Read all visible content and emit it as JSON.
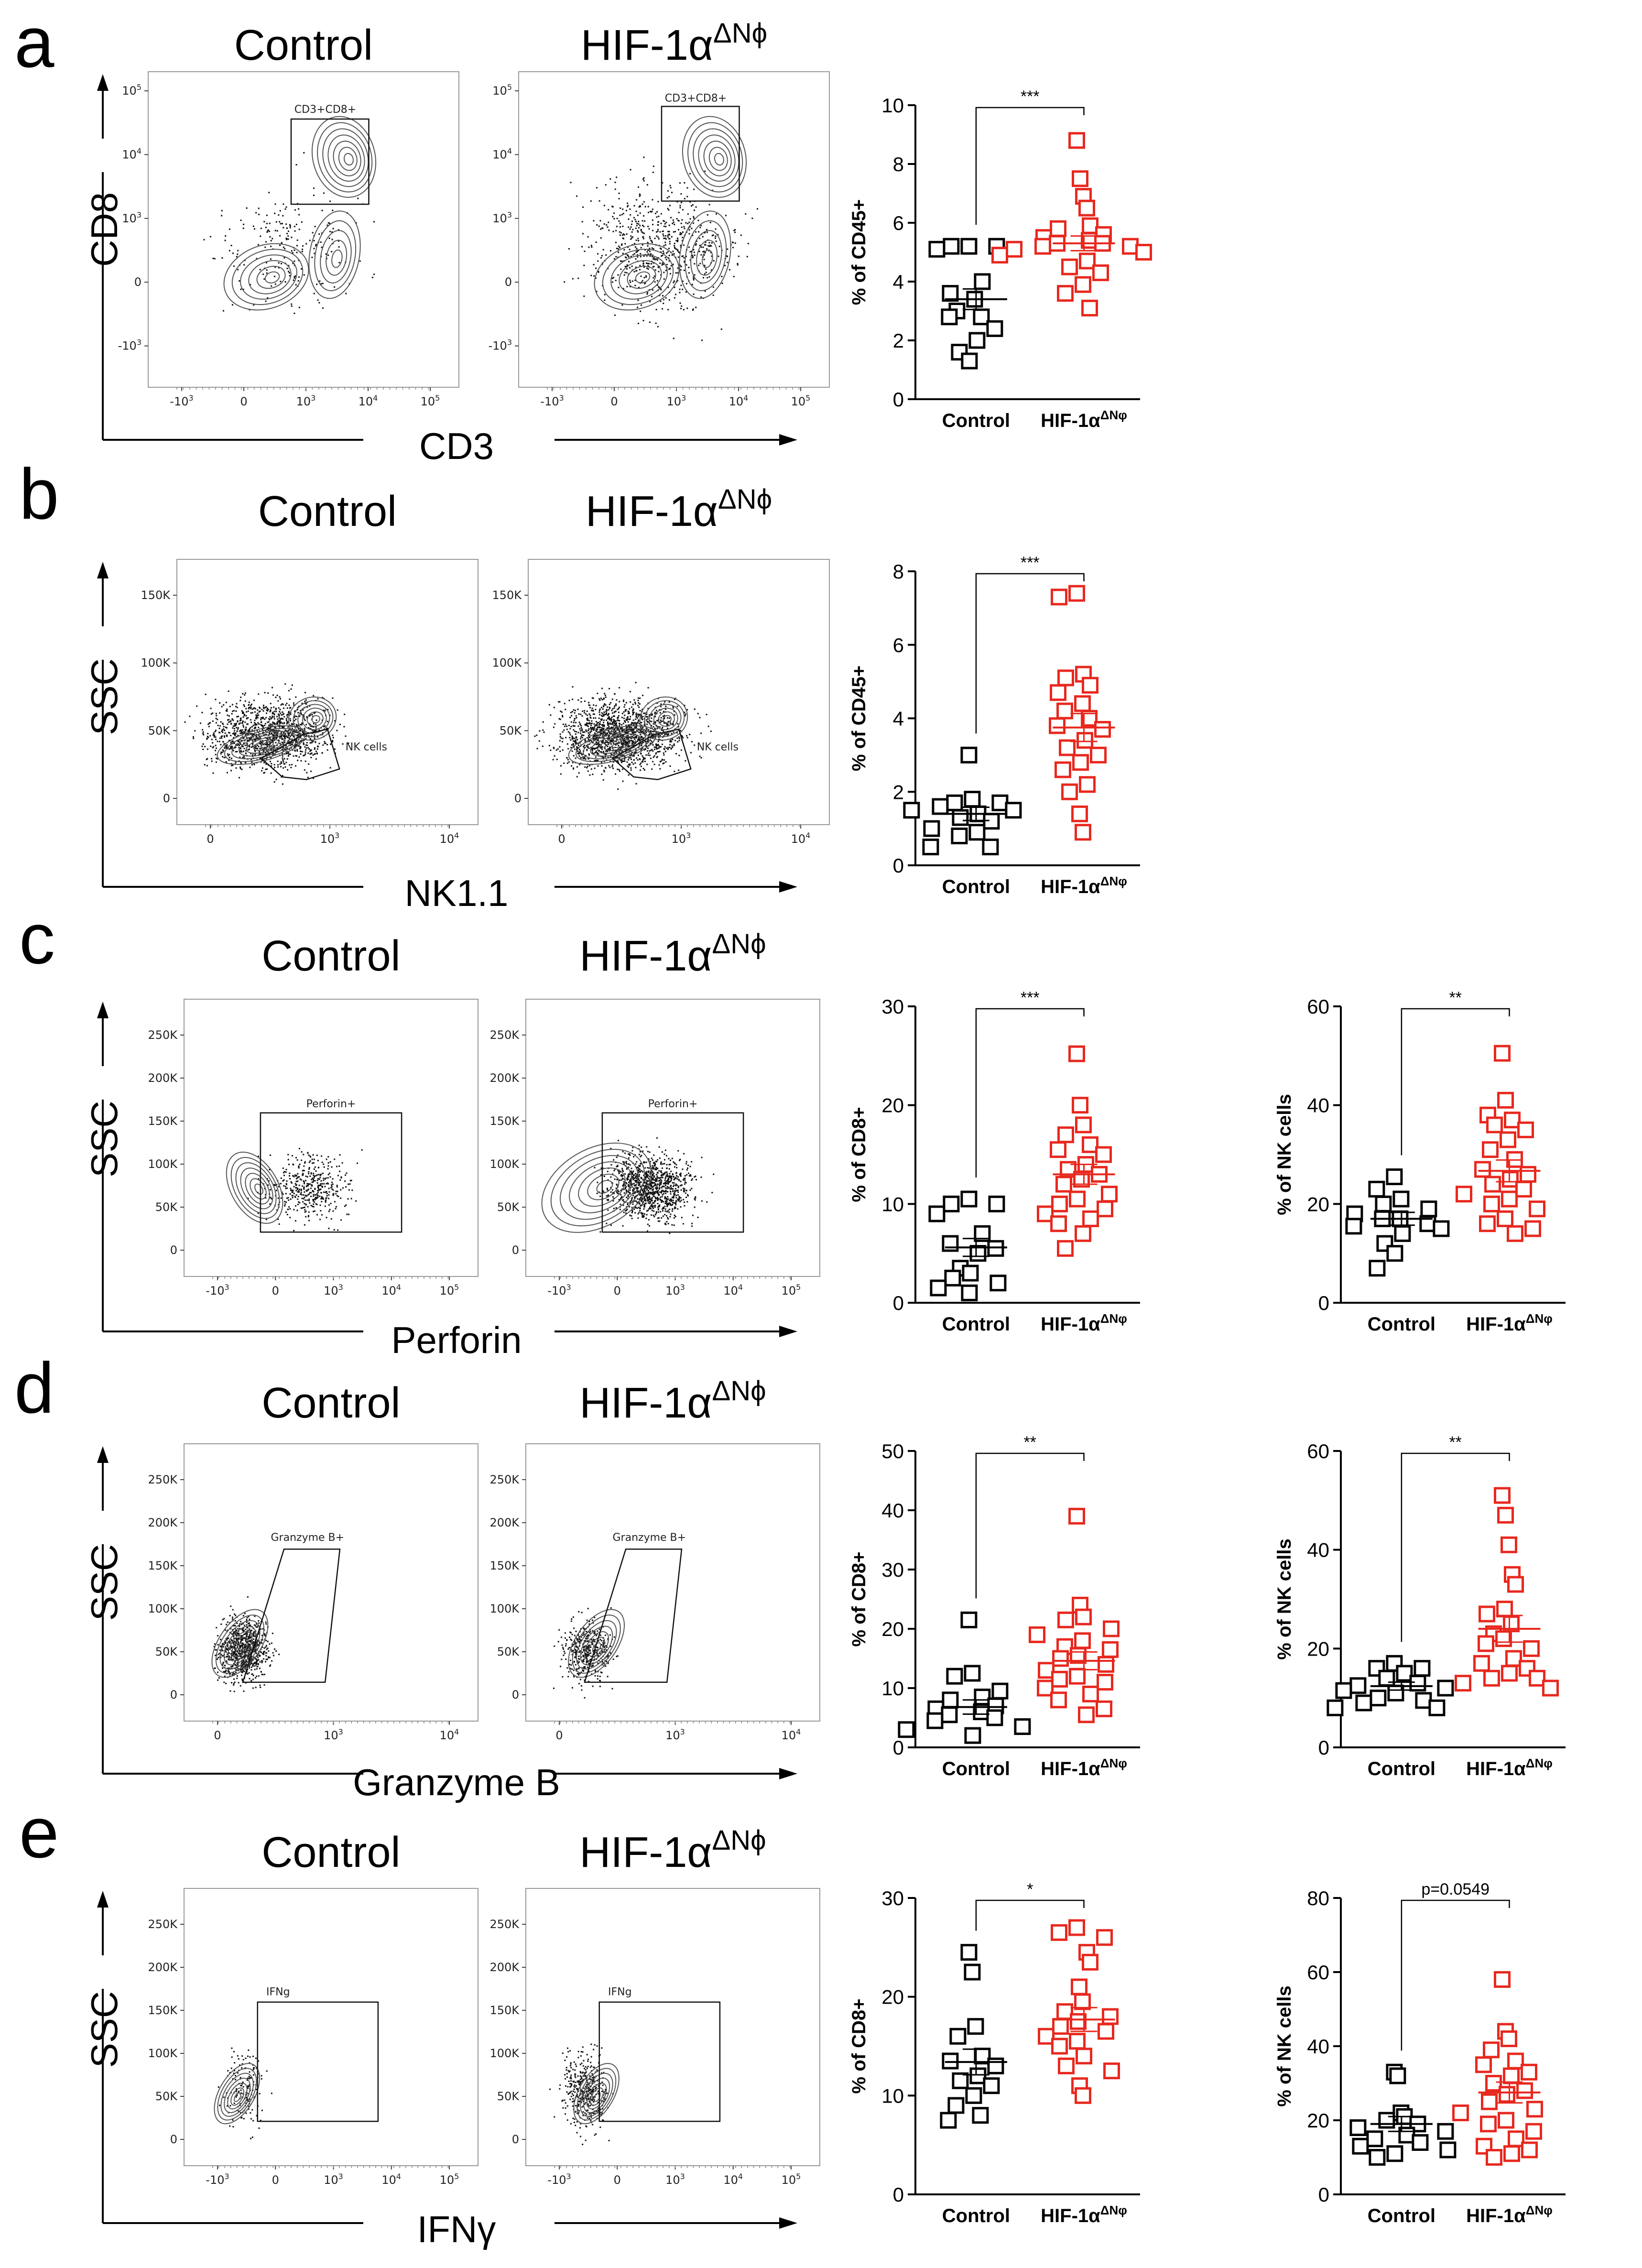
{
  "colors": {
    "control": "#000000",
    "hif": "#e8281e",
    "contour": "#555555"
  },
  "panels": [
    {
      "label": "a",
      "flow": {
        "ylabel": "CD8",
        "xlabel": "CD3",
        "y_scale": "log",
        "titles": [
          "Control",
          "HIF-1α",
          "ΔNϕ"
        ],
        "yticks": [
          [
            "10",
            "5"
          ],
          [
            "10",
            "4"
          ],
          [
            "10",
            "3"
          ],
          [
            "0",
            ""
          ],
          [
            "-10",
            "3"
          ]
        ],
        "xticks": [
          [
            "-10",
            "3"
          ],
          [
            "0",
            ""
          ],
          [
            "10",
            "3"
          ],
          [
            "10",
            "4"
          ],
          [
            "10",
            "5"
          ]
        ],
        "gates": [
          "CD3+CD8+",
          "CD3+CD8+"
        ]
      },
      "chart_data": [
        {
          "type": "scatter",
          "ylabel": "% of CD45+",
          "ylim": [
            0,
            10
          ],
          "yticks": [
            0,
            2,
            4,
            6,
            8,
            10
          ],
          "categories": [
            "Control",
            "HIF-1α",
            "ΔNφ"
          ],
          "significance": "***",
          "series": [
            {
              "name": "Control",
              "values": [
                5.2,
                5.2,
                5.2,
                5.1,
                4.0,
                3.6,
                3.4,
                3.0,
                2.8,
                2.8,
                2.4,
                2.0,
                1.6,
                1.3
              ],
              "mean": 3.4,
              "sem": 0.35
            },
            {
              "name": "HIF-1α ΔNφ",
              "values": [
                8.8,
                7.5,
                6.9,
                6.5,
                5.9,
                5.8,
                5.6,
                5.5,
                5.4,
                5.3,
                5.3,
                5.2,
                5.2,
                5.1,
                5.0,
                4.9,
                4.7,
                4.5,
                4.3,
                3.9,
                3.6,
                3.1
              ],
              "mean": 5.3,
              "sem": 0.25
            }
          ]
        }
      ]
    },
    {
      "label": "b",
      "flow": {
        "ylabel": "SSC",
        "xlabel": "NK1.1",
        "y_scale": "linear",
        "titles": [
          "Control",
          "HIF-1α",
          "ΔNϕ"
        ],
        "yticks": [
          "150K",
          "100K",
          "50K",
          "0"
        ],
        "xticks": [
          [
            "0",
            ""
          ],
          [
            "10",
            "3"
          ],
          [
            "10",
            "4"
          ]
        ],
        "gates": [
          "NK cells",
          "NK cells"
        ]
      },
      "chart_data": [
        {
          "type": "scatter",
          "ylabel": "% of CD45+",
          "ylim": [
            0,
            8
          ],
          "yticks": [
            0,
            2,
            4,
            6,
            8
          ],
          "categories": [
            "Control",
            "HIF-1α",
            "ΔNφ"
          ],
          "significance": "***",
          "series": [
            {
              "name": "Control",
              "values": [
                3.0,
                1.8,
                1.7,
                1.7,
                1.6,
                1.5,
                1.5,
                1.4,
                1.3,
                1.2,
                1.0,
                0.9,
                0.8,
                0.5,
                0.5
              ],
              "mean": 1.4,
              "sem": 0.18
            },
            {
              "name": "HIF-1α ΔNφ",
              "values": [
                7.4,
                7.3,
                5.2,
                5.1,
                4.9,
                4.7,
                4.4,
                4.2,
                4.0,
                3.8,
                3.7,
                3.4,
                3.2,
                3.0,
                2.8,
                2.6,
                2.2,
                2.0,
                1.4,
                0.9
              ],
              "mean": 3.75,
              "sem": 0.38
            }
          ]
        }
      ]
    },
    {
      "label": "c",
      "flow": {
        "ylabel": "SSC",
        "xlabel": "Perforin",
        "y_scale": "linear",
        "titles": [
          "Control",
          "HIF-1α",
          "ΔNϕ"
        ],
        "yticks": [
          "250K",
          "200K",
          "150K",
          "100K",
          "50K",
          "0"
        ],
        "xticks": [
          [
            "-10",
            "3"
          ],
          [
            "0",
            ""
          ],
          [
            "10",
            "3"
          ],
          [
            "10",
            "4"
          ],
          [
            "10",
            "5"
          ]
        ],
        "gates": [
          "Perforin+",
          "Perforin+"
        ]
      },
      "chart_data": [
        {
          "type": "scatter",
          "ylabel": "% of CD8+",
          "ylim": [
            0,
            30
          ],
          "yticks": [
            0,
            10,
            20,
            30
          ],
          "categories": [
            "Control",
            "HIF-1α",
            "ΔNφ"
          ],
          "significance": "***",
          "series": [
            {
              "name": "Control",
              "values": [
                10.5,
                10.0,
                10.0,
                9.0,
                7.0,
                6.0,
                5.5,
                5.0,
                3.5,
                3.0,
                2.5,
                2.0,
                1.5,
                1.0
              ],
              "mean": 5.6,
              "sem": 0.9
            },
            {
              "name": "HIF-1α ΔNφ",
              "values": [
                25.2,
                20.0,
                18.0,
                17.0,
                16.0,
                15.5,
                15.0,
                14.0,
                13.5,
                13.0,
                12.5,
                12.0,
                11.0,
                10.5,
                10.0,
                9.5,
                9.0,
                8.5,
                8.0,
                7.0,
                5.5
              ],
              "mean": 13.0,
              "sem": 1.0
            }
          ]
        },
        {
          "type": "scatter",
          "ylabel": "% of NK cells",
          "ylim": [
            0,
            60
          ],
          "yticks": [
            0,
            20,
            40,
            60
          ],
          "categories": [
            "Control",
            "HIF-1α",
            "ΔNφ"
          ],
          "significance": "**",
          "series": [
            {
              "name": "Control",
              "values": [
                25.5,
                23.0,
                21.0,
                20.0,
                19.0,
                18.0,
                17.0,
                17.0,
                16.0,
                15.5,
                15.0,
                14.0,
                12.0,
                10.0,
                7.0
              ],
              "mean": 17.0,
              "sem": 1.3
            },
            {
              "name": "HIF-1α ΔNφ",
              "values": [
                50.5,
                41.0,
                38.0,
                37.0,
                36.0,
                35.0,
                33.0,
                31.0,
                29.0,
                27.0,
                26.0,
                25.0,
                24.0,
                23.0,
                22.0,
                21.0,
                20.0,
                19.0,
                17.0,
                16.0,
                15.0,
                14.0
              ],
              "mean": 26.7,
              "sem": 2.2
            }
          ]
        }
      ]
    },
    {
      "label": "d",
      "flow": {
        "ylabel": "SSC",
        "xlabel": "Granzyme B",
        "y_scale": "linear",
        "titles": [
          "Control",
          "HIF-1α",
          "ΔNϕ"
        ],
        "yticks": [
          "250K",
          "200K",
          "150K",
          "100K",
          "50K",
          "0"
        ],
        "xticks": [
          [
            "0",
            ""
          ],
          [
            "10",
            "3"
          ],
          [
            "10",
            "4"
          ]
        ],
        "gates": [
          "Granzyme B+",
          "Granzyme B+"
        ]
      },
      "chart_data": [
        {
          "type": "scatter",
          "ylabel": "% of CD8+",
          "ylim": [
            0,
            50
          ],
          "yticks": [
            0,
            10,
            20,
            30,
            40,
            50
          ],
          "categories": [
            "Control",
            "HIF-1α",
            "ΔNφ"
          ],
          "significance": "**",
          "series": [
            {
              "name": "Control",
              "values": [
                21.5,
                12.5,
                12.0,
                9.5,
                8.5,
                8.0,
                7.0,
                6.5,
                6.0,
                5.5,
                5.0,
                4.5,
                3.5,
                3.0,
                2.0
              ],
              "mean": 6.8,
              "sem": 1.2
            },
            {
              "name": "HIF-1α ΔNφ",
              "values": [
                39.0,
                24.0,
                22.0,
                21.5,
                20.0,
                19.0,
                18.0,
                17.0,
                16.5,
                15.5,
                15.0,
                14.0,
                13.0,
                12.0,
                11.5,
                11.0,
                10.0,
                9.0,
                8.0,
                6.5,
                5.5
              ],
              "mean": 14.6,
              "sem": 1.5
            }
          ]
        },
        {
          "type": "scatter",
          "ylabel": "% of NK cells",
          "ylim": [
            0,
            60
          ],
          "yticks": [
            0,
            20,
            40,
            60
          ],
          "categories": [
            "Control",
            "HIF-1α",
            "ΔNφ"
          ],
          "significance": "**",
          "series": [
            {
              "name": "Control",
              "values": [
                17.0,
                16.0,
                16.0,
                15.0,
                14.0,
                13.0,
                12.5,
                12.0,
                11.5,
                11.0,
                10.0,
                9.5,
                9.0,
                8.0,
                8.0
              ],
              "mean": 12.4,
              "sem": 0.8
            },
            {
              "name": "HIF-1α ΔNφ",
              "values": [
                51.0,
                47.0,
                41.0,
                35.0,
                33.0,
                28.0,
                27.0,
                25.0,
                23.0,
                22.0,
                21.0,
                20.0,
                18.0,
                17.0,
                16.0,
                15.0,
                14.0,
                14.0,
                13.0,
                12.0
              ],
              "mean": 24.0,
              "sem": 2.7
            }
          ]
        }
      ]
    },
    {
      "label": "e",
      "flow": {
        "ylabel": "SSC",
        "xlabel": "IFNγ",
        "y_scale": "linear",
        "titles": [
          "Control",
          "HIF-1α",
          "ΔNϕ"
        ],
        "yticks": [
          "250K",
          "200K",
          "150K",
          "100K",
          "50K",
          "0"
        ],
        "xticks": [
          [
            "-10",
            "3"
          ],
          [
            "0",
            ""
          ],
          [
            "10",
            "3"
          ],
          [
            "10",
            "4"
          ],
          [
            "10",
            "5"
          ]
        ],
        "gates": [
          "IFNg",
          "IFNg"
        ]
      },
      "chart_data": [
        {
          "type": "scatter",
          "ylabel": "% of CD8+",
          "ylim": [
            0,
            30
          ],
          "yticks": [
            0,
            10,
            20,
            30
          ],
          "categories": [
            "Control",
            "HIF-1α",
            "ΔNφ"
          ],
          "significance": "*",
          "series": [
            {
              "name": "Control",
              "values": [
                24.5,
                22.5,
                17.0,
                16.0,
                14.0,
                13.5,
                13.0,
                12.0,
                11.5,
                11.0,
                10.0,
                9.0,
                8.0,
                7.5
              ],
              "mean": 13.4,
              "sem": 1.3
            },
            {
              "name": "HIF-1α ΔNφ",
              "values": [
                27.0,
                26.5,
                26.0,
                24.5,
                23.5,
                21.0,
                19.5,
                18.5,
                18.0,
                17.5,
                17.0,
                16.5,
                16.0,
                15.5,
                15.0,
                14.0,
                13.0,
                12.5,
                11.0,
                10.0
              ],
              "mean": 17.7,
              "sem": 1.2
            }
          ]
        },
        {
          "type": "scatter",
          "ylabel": "% of NK cells",
          "ylim": [
            0,
            80
          ],
          "yticks": [
            0,
            20,
            40,
            60,
            80
          ],
          "categories": [
            "Control",
            "HIF-1α",
            "ΔNφ"
          ],
          "significance": "p=0.0549",
          "series": [
            {
              "name": "Control",
              "values": [
                33.0,
                32.0,
                22.0,
                21.0,
                20.0,
                19.0,
                18.0,
                17.0,
                16.0,
                15.0,
                14.0,
                13.0,
                12.0,
                11.0,
                10.0
              ],
              "mean": 19.0,
              "sem": 2.0
            },
            {
              "name": "HIF-1α ΔNφ",
              "values": [
                58.0,
                44.0,
                42.0,
                39.0,
                36.0,
                35.0,
                33.0,
                32.0,
                30.0,
                28.0,
                27.0,
                25.0,
                23.0,
                22.0,
                20.0,
                19.0,
                17.0,
                15.0,
                13.0,
                12.0,
                11.0,
                10.0
              ],
              "mean": 27.5,
              "sem": 2.8
            }
          ]
        }
      ]
    }
  ]
}
